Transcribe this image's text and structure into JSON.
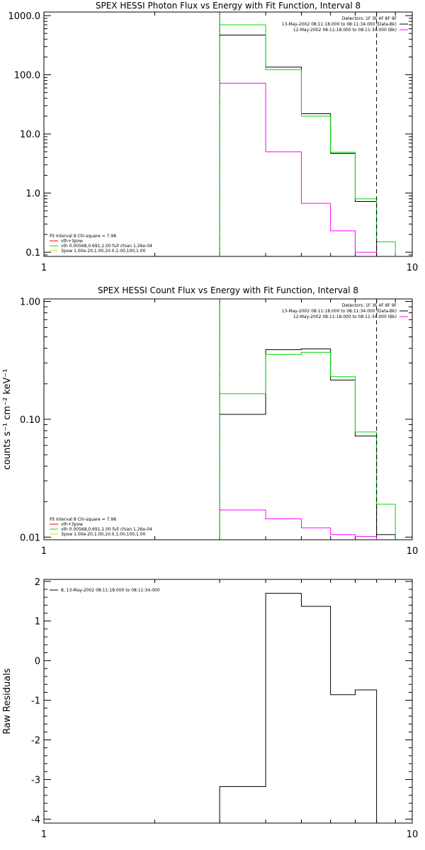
{
  "chart_data": [
    {
      "type": "line",
      "title": "SPEX HESSI Photon Flux vs Energy with Fit Function, Interval 8",
      "xlabel": "",
      "ylabel": "",
      "xscale": "log",
      "yscale": "log",
      "xlim": [
        1,
        10
      ],
      "ylim": [
        0.085,
        1150
      ],
      "xtick_labels": [
        {
          "v": 1,
          "t": "1"
        },
        {
          "v": 10,
          "t": "10"
        }
      ],
      "ytick_labels": [
        {
          "v": 0.1,
          "t": "0.1"
        },
        {
          "v": 1,
          "t": "1.0"
        },
        {
          "v": 10,
          "t": "10.0"
        },
        {
          "v": 100,
          "t": "100.0"
        },
        {
          "v": 1000,
          "t": "1000.0"
        }
      ],
      "vlines": [
        {
          "x": 3.0,
          "style": "dotted",
          "color": "#000000"
        },
        {
          "x": 8.0,
          "style": "dashed",
          "color": "#000000"
        }
      ],
      "vline_green": {
        "x": 3.0,
        "color": "#00dd00"
      },
      "series": [
        {
          "color": "#000000",
          "edges": [
            3,
            4,
            5,
            6,
            7,
            8
          ],
          "values": [
            470,
            135,
            22,
            4.7,
            0.72
          ]
        },
        {
          "color": "#00dd00",
          "edges": [
            3,
            4,
            5,
            6,
            7,
            8,
            9
          ],
          "values": [
            700,
            122,
            20,
            4.9,
            0.8,
            0.15
          ]
        },
        {
          "color": "#ff00ff",
          "edges": [
            3,
            4,
            5,
            6,
            7,
            8
          ],
          "values": [
            72,
            5.0,
            0.67,
            0.23,
            0.1
          ]
        }
      ],
      "legend_right": {
        "position": "top-right",
        "lines": [
          {
            "text": "Detectors: 1F 3F 4F 8F 9F",
            "color": null
          },
          {
            "text": "13-May-2002 08:11:18.000 to 08:11:34.000 (Data-Bk)",
            "color": "#000000"
          },
          {
            "text": "12-May-2002 08:11:18.000 to 08:11:34.000 (Bk)",
            "color": "#ff00ff"
          }
        ]
      },
      "legend_left": {
        "position": "bottom-left",
        "lines": [
          {
            "text": "Fit Interval 8   Chi-square = 7.98",
            "color": null
          },
          {
            "text": "vth+3pow",
            "color": "#ff0000"
          },
          {
            "text": "vth 0.00568,0.691,1.00   full chian 1.26e-04",
            "color": "#00dd00"
          },
          {
            "text": "3pow 1.00e-20,1.00,10.0,1.00,100,1.00",
            "color": "#dddd00"
          }
        ]
      }
    },
    {
      "type": "line",
      "title": "SPEX HESSI Count Flux vs Energy with Fit Function, Interval 8",
      "xlabel": "",
      "ylabel": "counts s⁻¹ cm⁻² keV⁻¹",
      "xscale": "log",
      "yscale": "log",
      "xlim": [
        1,
        10
      ],
      "ylim": [
        0.0095,
        1.05
      ],
      "xtick_labels": [
        {
          "v": 1,
          "t": "1"
        },
        {
          "v": 10,
          "t": "10"
        }
      ],
      "ytick_labels": [
        {
          "v": 0.01,
          "t": "0.01"
        },
        {
          "v": 0.1,
          "t": "0.10"
        },
        {
          "v": 1,
          "t": "1.00"
        }
      ],
      "vlines": [
        {
          "x": 3.0,
          "style": "dotted",
          "color": "#000000"
        },
        {
          "x": 8.0,
          "style": "dashed",
          "color": "#000000"
        }
      ],
      "vline_green": {
        "x": 3.0,
        "color": "#00dd00"
      },
      "series": [
        {
          "color": "#000000",
          "edges": [
            3,
            4,
            5,
            6,
            7,
            8,
            9
          ],
          "values": [
            0.11,
            0.39,
            0.395,
            0.215,
            0.072,
            0.0105
          ]
        },
        {
          "color": "#00dd00",
          "edges": [
            3,
            4,
            5,
            6,
            7,
            8,
            9
          ],
          "values": [
            0.165,
            0.355,
            0.37,
            0.23,
            0.078,
            0.019
          ]
        },
        {
          "color": "#ff00ff",
          "edges": [
            3,
            4,
            5,
            6,
            7,
            8
          ],
          "values": [
            0.017,
            0.0143,
            0.012,
            0.0105,
            0.0101
          ]
        }
      ],
      "legend_right": {
        "position": "top-right",
        "lines": [
          {
            "text": "Detectors: 1F 3F 4F 8F 9F",
            "color": null
          },
          {
            "text": "13-May-2002 08:11:18.000 to 08:11:34.000 (Data-Bk)",
            "color": "#000000"
          },
          {
            "text": "12-May-2002 08:11:18.000 to 08:11:34.000 (Bk)",
            "color": "#ff00ff"
          }
        ]
      },
      "legend_left": {
        "position": "bottom-left",
        "lines": [
          {
            "text": "Fit Interval 8   Chi-square = 7.98",
            "color": null
          },
          {
            "text": "vth+3pow",
            "color": "#ff0000"
          },
          {
            "text": "vth 0.00568,0.691,1.00   full chian 1.26e-04",
            "color": "#00dd00"
          },
          {
            "text": "3pow 1.00e-20,1.00,10.0,1.00,100,1.00",
            "color": "#dddd00"
          }
        ]
      }
    },
    {
      "type": "line",
      "title": "",
      "xlabel": "",
      "ylabel": "Raw Residuals",
      "xscale": "log",
      "yscale": "linear",
      "xlim": [
        1,
        10
      ],
      "ylim": [
        -4.1,
        2.05
      ],
      "xtick_labels": [
        {
          "v": 1,
          "t": "1"
        },
        {
          "v": 10,
          "t": "10"
        }
      ],
      "ytick_labels": [
        {
          "v": -4,
          "t": "-4"
        },
        {
          "v": -3,
          "t": "-3"
        },
        {
          "v": -2,
          "t": "-2"
        },
        {
          "v": -1,
          "t": "-1"
        },
        {
          "v": 0,
          "t": "0"
        },
        {
          "v": 1,
          "t": "1"
        },
        {
          "v": 2,
          "t": "2"
        }
      ],
      "vlines": [],
      "series": [
        {
          "color": "#000000",
          "edges": [
            3,
            4,
            5,
            6,
            7,
            8
          ],
          "values": [
            -3.18,
            1.7,
            1.37,
            -0.86,
            -0.74
          ],
          "drop_to_floor": true
        }
      ],
      "legend_left": {
        "position": "top-left",
        "lines": [
          {
            "text": "8, 13-May-2002 08:11:18.000 to 08:11:34.000",
            "color": "#000000"
          }
        ]
      }
    }
  ]
}
